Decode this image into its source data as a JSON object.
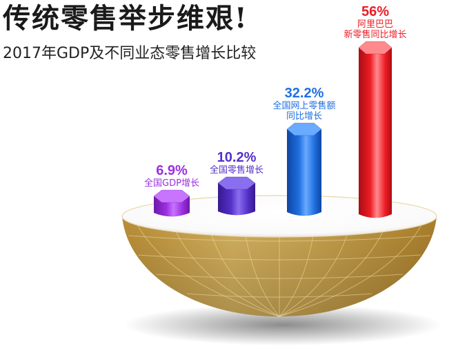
{
  "title": "传统零售举步维艰!",
  "subtitle": "2017年GDP及不同业态零售增长比较",
  "colors": {
    "purple": "#9b2fe0",
    "indigo": "#5530c8",
    "blue": "#1f6fe0",
    "red": "#ee1c24",
    "bowl": "#d8ae52"
  },
  "chart_data": {
    "type": "bar",
    "categories": [
      "全国GDP增长",
      "全国零售增长",
      "全国网上零售额同比增长",
      "阿里巴巴新零售同比增长"
    ],
    "values": [
      6.9,
      10.2,
      32.2,
      56
    ],
    "value_labels": [
      "6.9%",
      "10.2%",
      "32.2%",
      "56%"
    ],
    "label_lines": [
      [
        "全国GDP增长"
      ],
      [
        "全国零售增长"
      ],
      [
        "全国网上零售额",
        "同比增长"
      ],
      [
        "阿里巴巴",
        "新零售同比增长"
      ]
    ],
    "unit": "%",
    "ylim": [
      0,
      60
    ],
    "grid": false,
    "legend": "none"
  }
}
